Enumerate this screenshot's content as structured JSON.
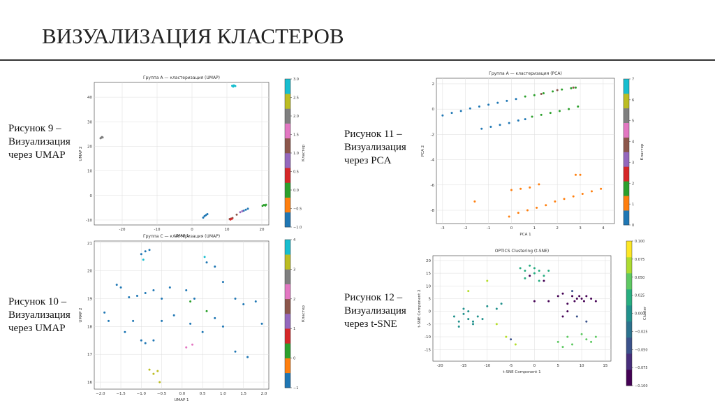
{
  "title": "ВИЗУАЛИЗАЦИЯ КЛАСТЕРОВ",
  "captions": [
    [
      "Рисунок 9 –",
      "Визуализация",
      "через UMAP"
    ],
    [
      "Рисунок 10 –",
      "Визуализация",
      "через UMAP"
    ],
    [
      "Рисунок 11 –",
      "Визуализация",
      "через PCA"
    ],
    [
      "Рисунок 12 –",
      "Визуализация",
      "через t-SNE"
    ]
  ],
  "chart_data": [
    {
      "type": "scatter",
      "title": "Группа A — кластеризация (UMAP)",
      "xlabel": "UMAP 1",
      "ylabel": "UMAP 2",
      "grid": true,
      "xlim": [
        -28,
        22
      ],
      "ylim": [
        -12,
        46
      ],
      "xticks": [
        -20,
        -10,
        0,
        10,
        20
      ],
      "yticks": [
        -10,
        0,
        10,
        20,
        30,
        40
      ],
      "colorbar": {
        "label": "Кластер",
        "lim": [
          -1,
          3
        ],
        "ticks": [
          {
            "value": -1,
            "label": "−1.0"
          },
          {
            "value": -0.5,
            "label": "−0.5"
          },
          {
            "value": 0,
            "label": "0.0"
          },
          {
            "value": 0.5,
            "label": "0.5"
          },
          {
            "value": 1,
            "label": "1.0"
          },
          {
            "value": 1.5,
            "label": "1.5"
          },
          {
            "value": 2,
            "label": "2.0"
          },
          {
            "value": 2.5,
            "label": "2.5"
          },
          {
            "value": 3,
            "label": "3.0"
          }
        ],
        "colors": [
          "#1f77b4",
          "#ff7f0e",
          "#2ca02c",
          "#d62728",
          "#9467bd",
          "#8c564b",
          "#e377c2",
          "#7f7f7f",
          "#bcbd22",
          "#17becf"
        ]
      },
      "series": [
        {
          "color": "#7f7f7f",
          "x": [
            -26.2,
            -25.8,
            -26,
            -25.6
          ],
          "values": [
            23.3,
            23.8,
            23.5,
            23.6
          ]
        },
        {
          "color": "#17becf",
          "x": [
            11.5,
            12,
            12.4,
            11.8
          ],
          "values": [
            44.6,
            44.8,
            44.5,
            44.3
          ]
        },
        {
          "color": "#1f77b4",
          "x": [
            3.2,
            3.6,
            4,
            4.4,
            14.8,
            15.4,
            16
          ],
          "values": [
            -9,
            -8.4,
            -8,
            -7.6,
            -6.2,
            -5.8,
            -5.4
          ]
        },
        {
          "color": "#8c564b",
          "x": [
            10.8,
            11.2,
            11.6,
            12.8
          ],
          "values": [
            -9.6,
            -9.4,
            -9.2,
            -7.8
          ]
        },
        {
          "color": "#d62728",
          "x": [
            11,
            11.4
          ],
          "values": [
            -9.8,
            -9.5
          ]
        },
        {
          "color": "#9467bd",
          "x": [
            13.8,
            14.4
          ],
          "values": [
            -6.8,
            -6.4
          ]
        },
        {
          "color": "#2ca02c",
          "x": [
            20.2,
            20.6,
            21,
            21.2
          ],
          "values": [
            -4.2,
            -3.9,
            -4.1,
            -3.8
          ]
        }
      ]
    },
    {
      "type": "scatter",
      "title": "Группа C — кластеризация (UMAP)",
      "xlabel": "UMAP 1",
      "ylabel": "UMAP 2",
      "grid": true,
      "xlim": [
        -2.15,
        2.12
      ],
      "ylim": [
        15.75,
        21.07
      ],
      "xticks": [
        {
          "value": -2,
          "label": "−2.0"
        },
        {
          "value": -1.5,
          "label": "−1.5"
        },
        {
          "value": -1,
          "label": "−1.0"
        },
        {
          "value": -0.5,
          "label": "−0.5"
        },
        {
          "value": 0,
          "label": "0.0"
        },
        {
          "value": 0.5,
          "label": "0.5"
        },
        {
          "value": 1,
          "label": "1.0"
        },
        {
          "value": 1.5,
          "label": "1.5"
        },
        {
          "value": 2,
          "label": "2.0"
        }
      ],
      "yticks": [
        16,
        17,
        18,
        19,
        20,
        21
      ],
      "colorbar": {
        "label": "Кластер",
        "lim": [
          -1,
          4
        ],
        "ticks": [
          {
            "value": -1,
            "label": "−1"
          },
          0,
          1,
          2,
          3,
          4
        ],
        "colors": [
          "#1f77b4",
          "#ff7f0e",
          "#2ca02c",
          "#d62728",
          "#9467bd",
          "#8c564b",
          "#e377c2",
          "#7f7f7f",
          "#bcbd22",
          "#17becf"
        ]
      },
      "series": [
        {
          "color": "#1f77b4",
          "x": [
            -1.0,
            -0.9,
            -0.8,
            -1.6,
            -1.5,
            -1.3,
            -1.1,
            -0.9,
            -0.7,
            -0.5,
            -0.3,
            0.1,
            0.3,
            0.6,
            0.8,
            1.0,
            1.3,
            1.5,
            1.8,
            -1.9,
            -1.8,
            -1.4,
            -1.2,
            -0.9,
            -0.7,
            -0.5,
            -0.2,
            0.2,
            0.5,
            0.8,
            1.0,
            1.3,
            1.6,
            1.95,
            -1.0
          ],
          "values": [
            20.6,
            20.7,
            20.75,
            19.5,
            19.4,
            19.05,
            19.1,
            19.2,
            19.3,
            19.0,
            19.4,
            19.3,
            19.0,
            20.3,
            20.15,
            19.6,
            19.0,
            18.8,
            18.9,
            18.5,
            18.2,
            17.8,
            18.2,
            17.4,
            17.5,
            18.2,
            18.4,
            18.1,
            17.8,
            18.3,
            18.0,
            17.1,
            16.9,
            18.1,
            17.5
          ]
        },
        {
          "color": "#bcbd22",
          "x": [
            -0.8,
            -0.7,
            -0.6,
            -0.55
          ],
          "values": [
            16.45,
            16.3,
            16.4,
            16.0
          ]
        },
        {
          "color": "#2ca02c",
          "x": [
            0.2,
            0.6
          ],
          "values": [
            18.9,
            18.55
          ]
        },
        {
          "color": "#e377c2",
          "x": [
            0.1,
            0.25
          ],
          "values": [
            17.25,
            17.35
          ]
        },
        {
          "color": "#17becf",
          "x": [
            -0.95,
            0.55
          ],
          "values": [
            20.4,
            20.5
          ]
        }
      ]
    },
    {
      "type": "scatter",
      "title": "Группа A — кластеризация (PCA)",
      "xlabel": "PCA 1",
      "ylabel": "PCA 2",
      "grid": true,
      "xlim": [
        -3.27,
        4.49
      ],
      "ylim": [
        -9.05,
        2.44
      ],
      "xticks": [
        -3,
        -2,
        -1,
        0,
        1,
        2,
        3,
        4
      ],
      "yticks": [
        -8,
        -6,
        -4,
        -2,
        0,
        2
      ],
      "colorbar": {
        "label": "Кластер",
        "lim": [
          0,
          7
        ],
        "ticks": [
          0,
          1,
          2,
          3,
          4,
          5,
          6,
          7
        ],
        "colors": [
          "#1f77b4",
          "#ff7f0e",
          "#2ca02c",
          "#d62728",
          "#9467bd",
          "#8c564b",
          "#e377c2",
          "#7f7f7f",
          "#bcbd22",
          "#17becf"
        ]
      },
      "series": [
        {
          "color": "#1f77b4",
          "x": [
            -3,
            -2.6,
            -2.2,
            -1.8,
            -1.4,
            -1.0,
            -0.6,
            -0.2,
            0.2,
            -1.3,
            -0.9,
            -0.5,
            -0.1,
            0.3,
            0.6
          ],
          "values": [
            -0.5,
            -0.3,
            -0.15,
            0.05,
            0.2,
            0.35,
            0.5,
            0.65,
            0.8,
            -1.55,
            -1.4,
            -1.25,
            -1.1,
            -0.9,
            -0.8
          ]
        },
        {
          "color": "#2ca02c",
          "x": [
            0.6,
            1.0,
            1.4,
            1.8,
            2.2,
            2.6,
            2.8,
            0.9,
            1.3,
            1.7,
            2.1,
            2.5,
            2.9
          ],
          "values": [
            1.0,
            1.1,
            1.25,
            1.4,
            1.55,
            1.65,
            1.7,
            -0.6,
            -0.45,
            -0.3,
            -0.15,
            0.0,
            0.2
          ]
        },
        {
          "color": "#8c564b",
          "x": [
            2.0,
            2.7,
            1.3
          ],
          "values": [
            1.5,
            1.7,
            1.2
          ]
        },
        {
          "color": "#ff7f0e",
          "x": [
            -0.1,
            0.3,
            0.7,
            1.1,
            1.5,
            1.9,
            2.3,
            2.7,
            3.1,
            3.5,
            3.9,
            -1.6,
            0.0,
            0.4,
            0.8,
            1.2,
            2.8,
            3.0
          ],
          "values": [
            -8.5,
            -8.2,
            -8.0,
            -7.8,
            -7.6,
            -7.3,
            -7.1,
            -6.9,
            -6.7,
            -6.5,
            -6.3,
            -7.3,
            -6.4,
            -6.3,
            -6.2,
            -5.95,
            -5.2,
            -5.2
          ]
        }
      ]
    },
    {
      "type": "scatter",
      "title": "OPTICS Clustering (t-SNE)",
      "xlabel": "t-SNE Component 1",
      "ylabel": "t-SNE Component 2",
      "grid": true,
      "xlim": [
        -21.5,
        16.2
      ],
      "ylim": [
        -19.6,
        21.9
      ],
      "xticks": [
        -20,
        -15,
        -10,
        -5,
        0,
        5,
        10,
        15
      ],
      "yticks": [
        -15,
        -10,
        -5,
        0,
        5,
        10,
        15,
        20
      ],
      "colorbar": {
        "label": "Cluster",
        "lim": [
          -0.1,
          0.1
        ],
        "ticks": [
          {
            "value": -0.1,
            "label": "−0.100"
          },
          {
            "value": -0.075,
            "label": "−0.075"
          },
          {
            "value": -0.05,
            "label": "−0.050"
          },
          {
            "value": -0.025,
            "label": "−0.025"
          },
          {
            "value": 0,
            "label": "0.000"
          },
          {
            "value": 0.025,
            "label": "0.025"
          },
          {
            "value": 0.05,
            "label": "0.050"
          },
          {
            "value": 0.075,
            "label": "0.075"
          },
          {
            "value": 0.1,
            "label": "0.100"
          }
        ],
        "colors": [
          "#440154",
          "#472d7b",
          "#3b528b",
          "#2c728e",
          "#21918c",
          "#28ae80",
          "#5ec962",
          "#addc30",
          "#fde725"
        ]
      },
      "series": [
        {
          "color": "#440154",
          "x": [
            5,
            6,
            7,
            8,
            8.5,
            9,
            9.5,
            10,
            10.5,
            11,
            12,
            13,
            3,
            2,
            -1,
            0,
            6,
            7
          ],
          "values": [
            6,
            7,
            3,
            6,
            4,
            5,
            6,
            5,
            4,
            6,
            5,
            4,
            4,
            12,
            14,
            4,
            -2,
            0
          ]
        },
        {
          "color": "#3b528b",
          "x": [
            9,
            11,
            -5,
            8
          ],
          "values": [
            -2,
            -4,
            -11,
            8
          ]
        },
        {
          "color": "#21918c",
          "x": [
            -17,
            -16,
            -15,
            -14,
            -13,
            -12,
            -16,
            -15,
            -14,
            -13,
            -11,
            -10,
            -8,
            -7
          ],
          "values": [
            -2,
            -4,
            -1,
            -3,
            -5,
            -2,
            -6,
            1,
            0,
            -4,
            -3,
            2,
            1,
            3
          ]
        },
        {
          "color": "#27ad81",
          "x": [
            -3,
            -2,
            -1,
            0,
            1,
            2,
            -2,
            0,
            1,
            3
          ],
          "values": [
            17,
            16,
            18,
            15,
            16,
            14,
            13,
            17,
            12,
            16
          ]
        },
        {
          "color": "#5ec962",
          "x": [
            5,
            6,
            7,
            8,
            11,
            12,
            13,
            10
          ],
          "values": [
            -12,
            -14,
            -10,
            -13,
            -11,
            -12,
            -10,
            -9
          ]
        },
        {
          "color": "#b5de2b",
          "x": [
            -14,
            -10,
            -8,
            -6,
            -4
          ],
          "values": [
            8,
            12,
            -5,
            -10,
            -13
          ]
        }
      ]
    }
  ]
}
